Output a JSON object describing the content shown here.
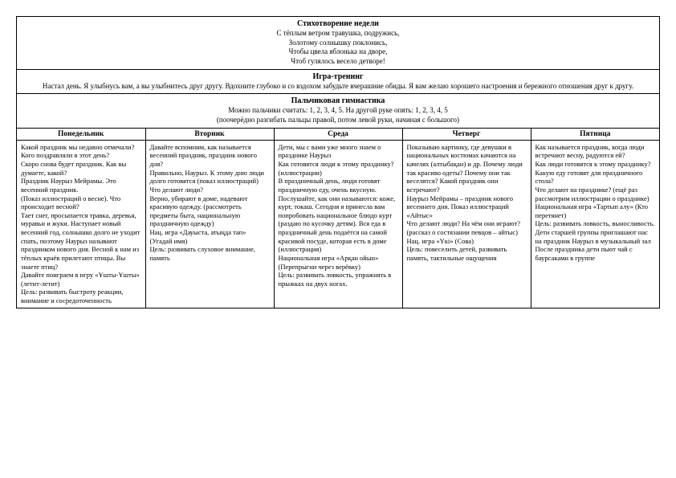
{
  "poem": {
    "title": "Стихотворение недели",
    "lines": [
      "С тёплым ветром травушка, подружись,",
      "Золотому солнышку поклонись,",
      "Чтобы цвела яблонька на дворе,",
      "Чтоб гулялось весело детворе!"
    ]
  },
  "training": {
    "title": "Игра-тренинг",
    "text": "Настал день. Я улыбнусь вам, а вы улыбнитесь друг другу. Вдохните глубоко и со вздохом забудьте вчерашние обиды. Я вам желаю хорошего настроения и бережного отношения друг к другу."
  },
  "gym": {
    "title": "Пальчиковая гимнастика",
    "line1": "Можно пальчики считать: 1, 2, 3, 4, 5. На другой руке опять: 1, 2, 3, 4, 5",
    "line2": "(поочерёдно разгибать пальцы правой, потом левой руки, начиная с большого)"
  },
  "days": {
    "headers": [
      "Понедельник",
      "Вторник",
      "Среда",
      "Четверг",
      "Пятница"
    ],
    "cells": [
      "Какой праздник мы недавно отмечали?\nКого поздравляли в этот день?\nСкоро снова будет праздник. Как вы думаете, какой?\nПраздник Наурыз Мейрамы. Это весенний праздник.\n(Показ иллюстраций о весне). Что происходит весной?\nТает снег, просыпается травка, деревья, муравьи и жуки. Наступает новый весенний год, солнышко долго не уходит спать, поэтому Наурыз называют праздником нового дня. Весной к нам из тёплых краёв прилетают птицы. Вы знаете птиц?\nДавайте поиграем в игру «Ұшты-Ұшты» (летит-летит)\nЦель: развивать быстроту реакции, внимание и сосредоточенность",
      "Давайте вспомним, как называется весенний праздник, праздник нового дня?\nПравильно, Наурыз. К этому дню люди долго готовятся (показ иллюстраций) Что делают люди?\nВерно, убирают в доме, надевают красивую одежду. (рассмотреть предметы быта, национальную праздничную одежду)\nНац. игра «Дауыста, атыңда тап» (Угадай имя)\nЦель: развивать слуховое внимание, память",
      "Дети, мы с вами уже много знаем о празднике Наурыз\nКак готовятся люди к этому празднику? (иллюстрации)\nВ праздничный день, люди готовят праздничную еду, очень вкусную. Послушайте, как они называются: коже, курт, токаш. Сегодня я принесла вам попробовать национальное блюдо курт (раздаю по кусочку детям). Вся еда в праздничный день подаётся на самой красивой посуде, которая есть в доме (иллюстрация)\nНациональная игра «Арқан ойын» (Перепрыгни через верёвку)\nЦель: развивать ловкость, упражнять в прыжках на двух ногах.",
      "Показываю картинку, где девушки в национальных костюмах качаются на качелях (алтыбақан) и др. Почему люди так красиво одеты? Почему они так веселятся? Какой праздник они встречают?\nНаурыз Мейрамы – праздник нового весеннего дня. Показ иллюстраций «Айтыс»\nЧто делают люди? На чём они играют?\n(рассказ о состязании певцов – айтыс)\nНац. игра «Үкі» (Сова)\nЦель: повеселить детей, развивать память, тактильные ощущения",
      "Как называется праздник, когда люди встречают весну, радуются ей?\nКак люди готовятся к этому празднику?\nКакую еду готовят для праздничного стола?\nЧто делают на празднике? (ещё раз рассмотрим иллюстрации о празднике)\nНациональная игра «Тартып алу» (Кто перетянет)\nЦель: развивать ловкость, выносливость.\nДети старшей группы приглашают нас на праздник Наурыз в музыкальный зал\nПосле праздника дети пьют чай с баурсаками в группе"
    ]
  },
  "style": {
    "bg": "#ffffff",
    "border": "#000000",
    "title_fontsize": 10,
    "body_fontsize": 9,
    "cell_fontsize": 8.5
  }
}
